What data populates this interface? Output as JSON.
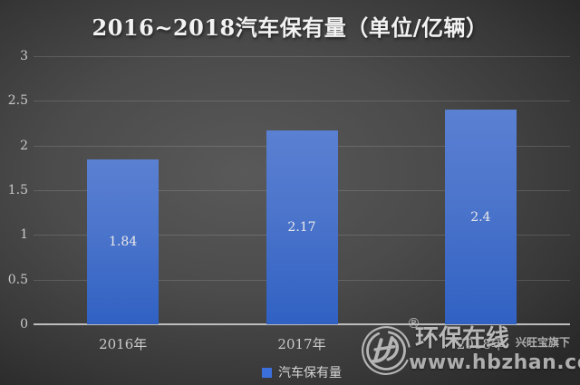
{
  "chart_data": {
    "type": "bar",
    "title": "2016~2018汽车保有量（单位/亿辆）",
    "categories": [
      "2016年",
      "2017年",
      "2018年"
    ],
    "series": [
      {
        "name": "汽车保有量",
        "values": [
          1.84,
          2.17,
          2.4
        ]
      }
    ],
    "data_labels": [
      "1.84",
      "2.17",
      "2.4"
    ],
    "ylim": [
      0,
      3
    ],
    "ytick_step": 0.5,
    "yticks_top_to_bottom": [
      "3",
      "2.5",
      "2",
      "1.5",
      "1",
      "0.5",
      "0"
    ],
    "grid": true,
    "legend_position": "bottom",
    "colors": {
      "bar_top": "#5a80d2",
      "bar_bottom": "#3061c3",
      "legend_swatch": "#3b6fdc",
      "background_center": "#595959",
      "background_edge": "#292929",
      "axis_line": "#bdbdbd",
      "tick_text": "#c9c9c9",
      "title_text": "#f2f2f2"
    }
  },
  "legend": {
    "label": "汽车保有量"
  },
  "watermark": {
    "logo_icon": "hbzhan-circle-logo",
    "registered_symbol": "®",
    "brand_name": "环保在线",
    "brand_tagline": "兴旺宝旗下",
    "website": "www.hbzhan.com"
  }
}
